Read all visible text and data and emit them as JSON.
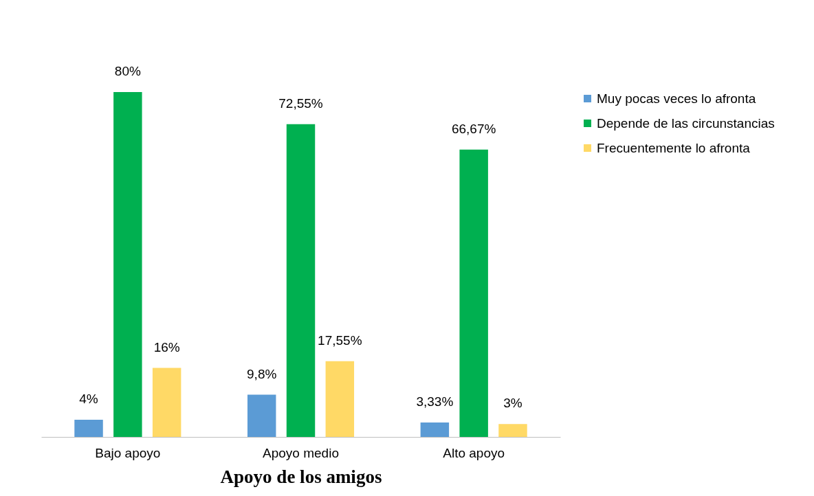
{
  "chart_data": {
    "type": "bar",
    "xlabel": "Apoyo de los amigos",
    "categories": [
      "Bajo apoyo",
      "Apoyo medio",
      "Alto apoyo"
    ],
    "series": [
      {
        "name": "Muy pocas veces lo afronta",
        "color": "#5b9bd5",
        "values": [
          4,
          9.8,
          3.33
        ],
        "value_labels": [
          "4%",
          "9,8%",
          "3,33%"
        ]
      },
      {
        "name": "Depende de las circunstancias",
        "color": "#00b050",
        "values": [
          80,
          72.55,
          66.67
        ],
        "value_labels": [
          "80%",
          "72,55%",
          "66,67%"
        ]
      },
      {
        "name": "Frecuentemente lo afronta",
        "color": "#ffd966",
        "values": [
          16,
          17.55,
          3
        ],
        "value_labels": [
          "16%",
          "17,55%",
          "3%"
        ]
      }
    ],
    "legend": "right",
    "grid": false
  }
}
